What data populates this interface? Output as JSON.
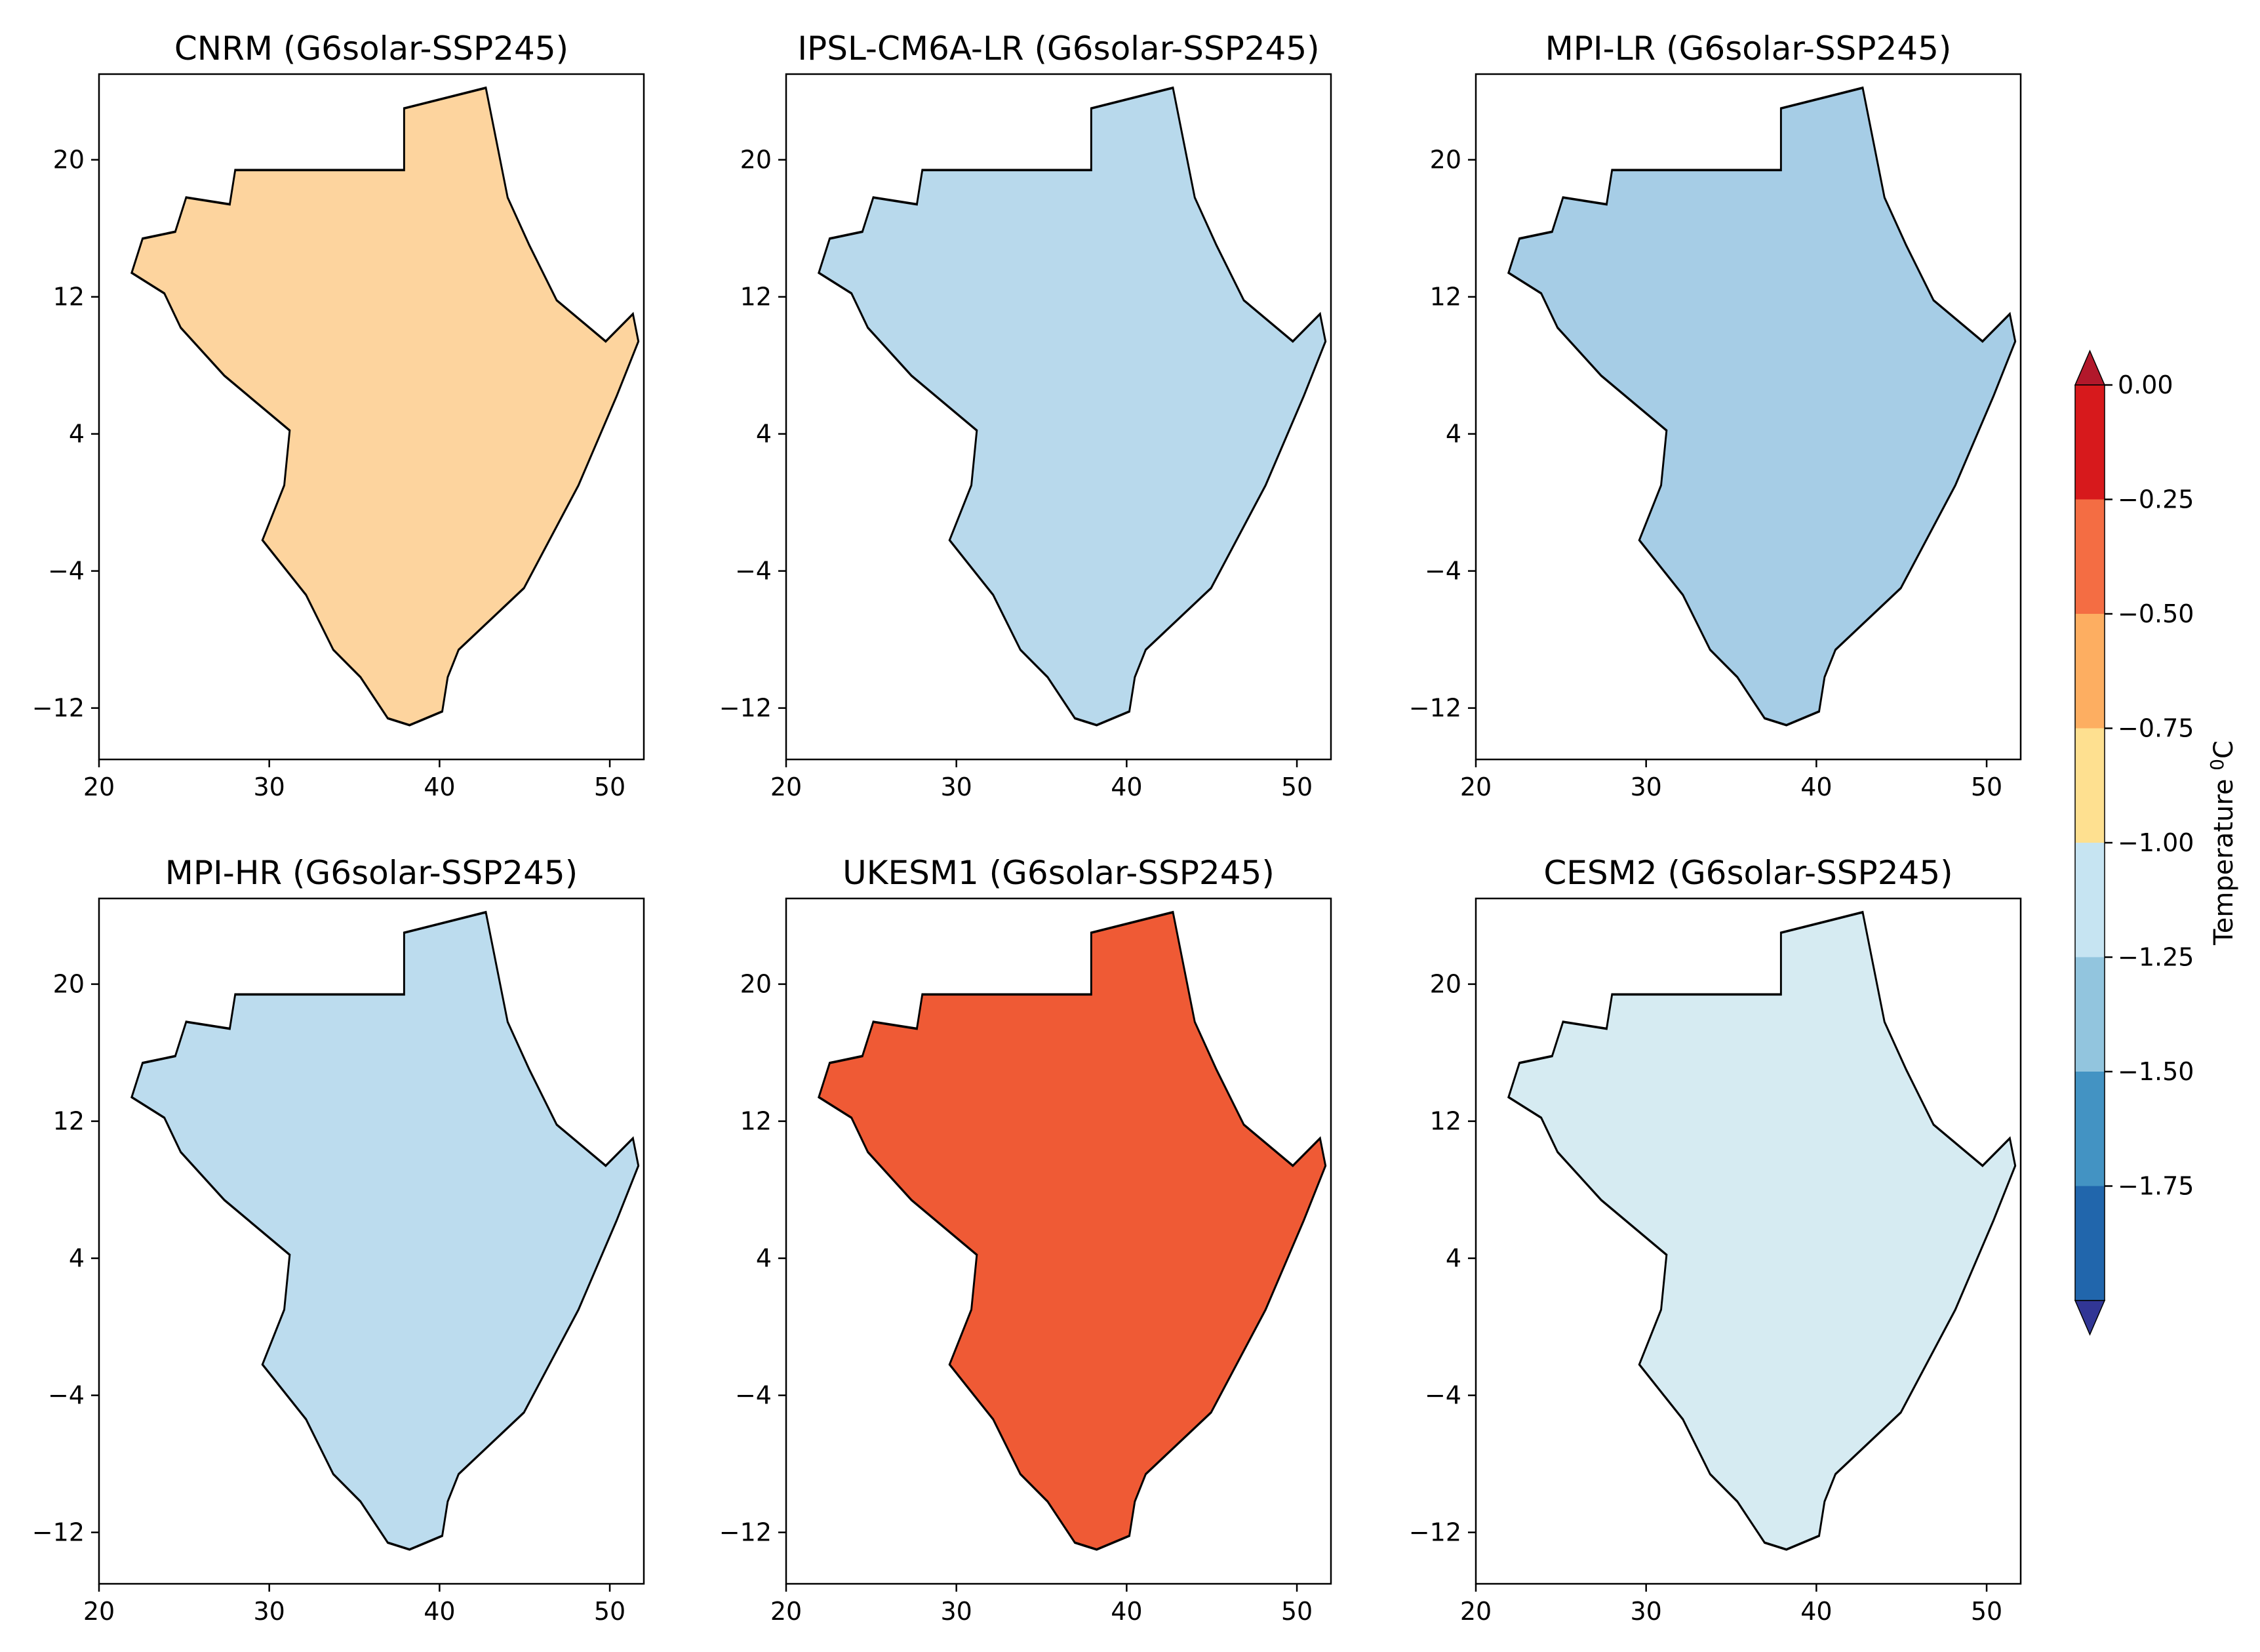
{
  "figure": {
    "colorbar": {
      "label_main": "Temperature ",
      "label_sup": "0",
      "label_unit": "C",
      "ticks": [
        "0.00",
        "−0.25",
        "−0.50",
        "−0.75",
        "−1.00",
        "−1.25",
        "−1.50",
        "−1.75"
      ],
      "colors": [
        "#d7191c",
        "#f46d43",
        "#fdae61",
        "#fee090",
        "#c6e4f2",
        "#92c5de",
        "#4393c3",
        "#2166ac"
      ],
      "extend_max_color": "#b2182b",
      "extend_min_color": "#313695"
    },
    "axes": {
      "x_ticks": [
        "20",
        "30",
        "40",
        "50"
      ],
      "y_ticks": [
        "20",
        "12",
        "4",
        "−4",
        "−12"
      ]
    }
  },
  "chart_data": [
    {
      "type": "heatmap",
      "title": "CNRM (G6solar-SSP245)",
      "model": "CNRM",
      "scenario": "G6solar-SSP245",
      "xlim": [
        20,
        52
      ],
      "ylim": [
        -15,
        25
      ],
      "dominant_value_range_C": [
        -0.75,
        -0.25
      ],
      "fill": "#fdd49e"
    },
    {
      "type": "heatmap",
      "title": "IPSL-CM6A-LR (G6solar-SSP245)",
      "model": "IPSL-CM6A-LR",
      "scenario": "G6solar-SSP245",
      "xlim": [
        20,
        52
      ],
      "ylim": [
        -15,
        25
      ],
      "dominant_value_range_C": [
        -1.75,
        -0.5
      ],
      "fill": "#b8d9ec"
    },
    {
      "type": "heatmap",
      "title": "MPI-LR (G6solar-SSP245)",
      "model": "MPI-LR",
      "scenario": "G6solar-SSP245",
      "xlim": [
        20,
        52
      ],
      "ylim": [
        -15,
        25
      ],
      "dominant_value_range_C": [
        -1.75,
        -0.75
      ],
      "fill": "#a6cde6"
    },
    {
      "type": "heatmap",
      "title": "MPI-HR (G6solar-SSP245)",
      "model": "MPI-HR",
      "scenario": "G6solar-SSP245",
      "xlim": [
        20,
        52
      ],
      "ylim": [
        -15,
        25
      ],
      "dominant_value_range_C": [
        -1.75,
        -0.75
      ],
      "fill": "#bcdcee"
    },
    {
      "type": "heatmap",
      "title": "UKESM1 (G6solar-SSP245)",
      "model": "UKESM1",
      "scenario": "G6solar-SSP245",
      "xlim": [
        20,
        52
      ],
      "ylim": [
        -15,
        25
      ],
      "dominant_value_range_C": [
        -1.25,
        0.0
      ],
      "fill": "#ef5a35"
    },
    {
      "type": "heatmap",
      "title": "CESM2 (G6solar-SSP245)",
      "model": "CESM2",
      "scenario": "G6solar-SSP245",
      "xlim": [
        20,
        52
      ],
      "ylim": [
        -15,
        25
      ],
      "dominant_value_range_C": [
        -1.25,
        -0.25
      ],
      "fill": "#d6ebf2"
    }
  ]
}
